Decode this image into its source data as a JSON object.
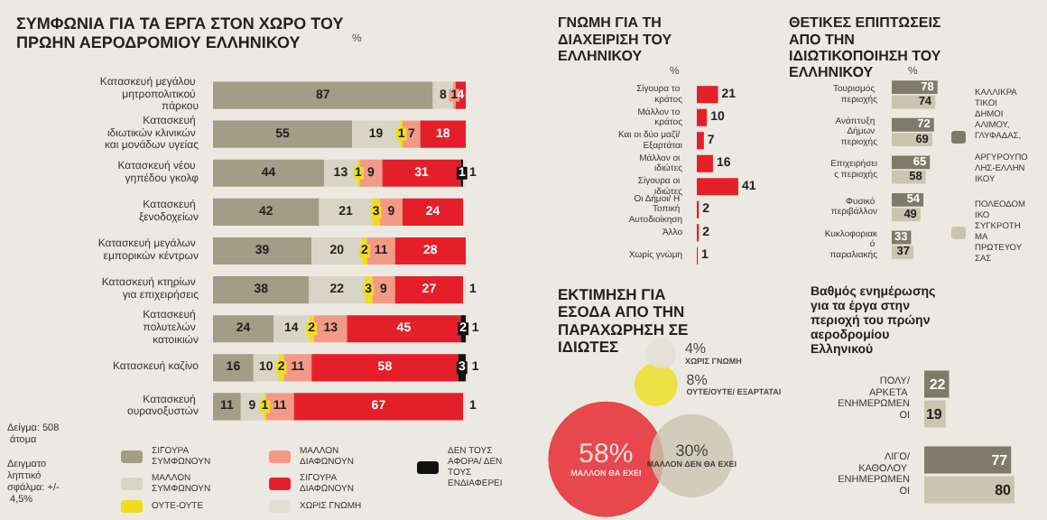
{
  "chart_data": [
    {
      "type": "bar",
      "orientation": "horizontal",
      "stacked": true,
      "title": "ΣΥΜΦΩΝΙΑ ΓΙΑ ΤΑ ΕΡΓΑ ΣΤΟΝ ΧΩΡΟ ΤΟΥ ΠΡΩΗΝ ΑΕΡΟΔΡΟΜΙΟΥ ΕΛΛΗΝΙΚΟΥ",
      "subtitle": "%",
      "data_labels": true,
      "legend": "bottom",
      "categories": [
        "Κατασκευή μεγάλου μητροπολιτικού πάρκου",
        "Κατασκευή ιδιωτικών κλινικών και μονάδων υγείας",
        "Κατασκευή νέου γηπέδου γκολφ",
        "Κατασκευή ξενοδοχείων",
        "Κατασκευή μεγάλων εμπορικών κέντρων",
        "Κατασκευή κτηρίων για επιχειρήσεις",
        "Κατασκευή πολυτελών κατοικιών",
        "Κατασκευή καζίνο",
        "Κατασκευή ουρανοξυστών"
      ],
      "series": [
        {
          "name": "ΣΙΓΟΥΡΑ ΣΥΜΦΩΝΟΥΝ",
          "color": "#a19d86",
          "values": [
            87,
            55,
            44,
            42,
            39,
            38,
            24,
            16,
            11
          ]
        },
        {
          "name": "ΜΑΛΛΟΝ ΣΥΜΦΩΝΟΥΝ",
          "color": "#d8d5c6",
          "values": [
            8,
            19,
            13,
            21,
            20,
            22,
            14,
            10,
            9
          ]
        },
        {
          "name": "ΟΥΤΕ-ΟΥΤΕ",
          "color": "#eede1e",
          "values": [
            null,
            1,
            1,
            3,
            2,
            3,
            2,
            2,
            1
          ]
        },
        {
          "name": "ΜΑΛΛΟΝ ΔΙΑΦΩΝΟΥΝ",
          "color": "#f39a86",
          "values": [
            1,
            7,
            9,
            9,
            11,
            9,
            13,
            11,
            11
          ]
        },
        {
          "name": "ΣΙΓΟΥΡΑ ΔΙΑΦΩΝΟΥΝ",
          "color": "#e51f29",
          "values": [
            4,
            18,
            31,
            24,
            28,
            27,
            45,
            58,
            67
          ]
        },
        {
          "name": "ΔΕΝ ΤΟΥΣ ΑΦΟΡΑ/ ΔΕΝ ΤΟΥΣ ΕΝΔΙΑΦΕΡΕΙ",
          "color": "#111111",
          "values": [
            null,
            null,
            1,
            null,
            null,
            null,
            2,
            3,
            null
          ]
        },
        {
          "name": "ΧΩΡΙΣ ΓΝΩΜΗ",
          "color": "#e2dfd3",
          "values": [
            null,
            null,
            1,
            null,
            null,
            1,
            1,
            1,
            1
          ]
        }
      ],
      "annotations": [
        "Δείγμα: 508 άτομα",
        "Δειγματοληπτικό σφάλμα: +/- 4,5%"
      ]
    },
    {
      "type": "bar",
      "orientation": "horizontal",
      "title": "ΓΝΩΜΗ ΓΙΑ ΤΗ ΔΙΑΧΕΙΡΙΣΗ ΤΟΥ ΕΛΛΗΝΙΚΟΥ",
      "subtitle": "%",
      "data_labels": true,
      "categories": [
        "Σίγουρα το κράτος",
        "Μάλλον το κράτος",
        "Και οι δύο μαζί/ Εξαρτάται",
        "Μάλλον οι ιδιώτες",
        "Σίγουρα οι ιδιώτες",
        "Οι Δήμοι/ Η Τοπική Αυτοδιοίκηση",
        "Άλλο",
        "Χωρίς γνώμη"
      ],
      "values": [
        21,
        10,
        7,
        16,
        41,
        2,
        2,
        1
      ],
      "color": "#e51f29"
    },
    {
      "type": "bar",
      "orientation": "horizontal",
      "title": "ΘΕΤΙΚΕΣ ΕΠΙΠΤΩΣΕΙΣ ΑΠΟ ΤΗΝ ΙΔΙΩΤΙΚΟΠΟΙΗΣΗ ΤΟΥ ΕΛΛΗΝΙΚΟΥ",
      "subtitle": "%",
      "data_labels": true,
      "legend": "right",
      "categories": [
        "Τουρισμός περιοχής",
        "Ανάπτυξη Δήμων περιοχής",
        "Επιχειρήσεις περιοχής",
        "Φυσικό περιβάλλον",
        "Κυκλοφοριακό παραλιακής"
      ],
      "series": [
        {
          "name": "ΚΑΛΛΙΚΡΑΤΙΚΟΙ ΔΗΜΟΙ ΑΛΙΜΟΥ, ΓΛΥΦΑΔΑΣ, ΑΡΓΥΡΟΥΠΟΛΗΣ-ΕΛΛΗΝΙΚΟΥ",
          "color": "#7e7b6a",
          "values": [
            78,
            72,
            65,
            54,
            33
          ]
        },
        {
          "name": "ΠΟΛΕΟΔΟΜΙΚΟ ΣΥΓΚΡΟΤΗΜΑ ΠΡΩΤΕΥΟΥΣΑΣ",
          "color": "#c9c5b0",
          "values": [
            74,
            69,
            58,
            49,
            37
          ]
        }
      ]
    },
    {
      "type": "other",
      "title": "ΕΚΤΙΜΗΣΗ ΓΙΑ ΕΣΟΔΑ ΑΠΟ ΤΗΝ ΠΑΡΑΧΩΡΗΣΗ ΣΕ ΙΔΙΩΤΕΣ",
      "categories": [
        "ΜΑΛΛΟΝ ΘΑ ΕΧΕΙ",
        "ΜΑΛΛΟΝ ΔΕΝ ΘΑ ΕΧΕΙ",
        "ΟΥΤΕ/ΟΥΤΕ/ ΕΞΑΡΤΑΤΑΙ",
        "ΧΩΡΙΣ ΓΝΩΜΗ"
      ],
      "values": [
        58,
        30,
        8,
        4
      ],
      "value_labels": [
        "58%",
        "30%",
        "8%",
        "4%"
      ],
      "colors": [
        "#e51f29",
        "#c9c5b0",
        "#eede1e",
        "#e2dfd3"
      ]
    },
    {
      "type": "bar",
      "orientation": "horizontal",
      "title": "Βαθμός ενημέρωσης για τα έργα στην περιοχή του πρώην αεροδρομίου Ελληνικού",
      "data_labels": true,
      "categories": [
        "ΠΟΛΥ/ΑΡΚΕΤΑ ΕΝΗΜΕΡΩΜΕΝΟΙ",
        "ΛΙΓΟ/ΚΑΘΟΛΟΥ ΕΝΗΜΕΡΩΜΕΝΟΙ"
      ],
      "series": [
        {
          "color": "#7e7b6a",
          "values": [
            22,
            77
          ]
        },
        {
          "color": "#c9c5b0",
          "values": [
            19,
            80
          ]
        }
      ]
    }
  ]
}
